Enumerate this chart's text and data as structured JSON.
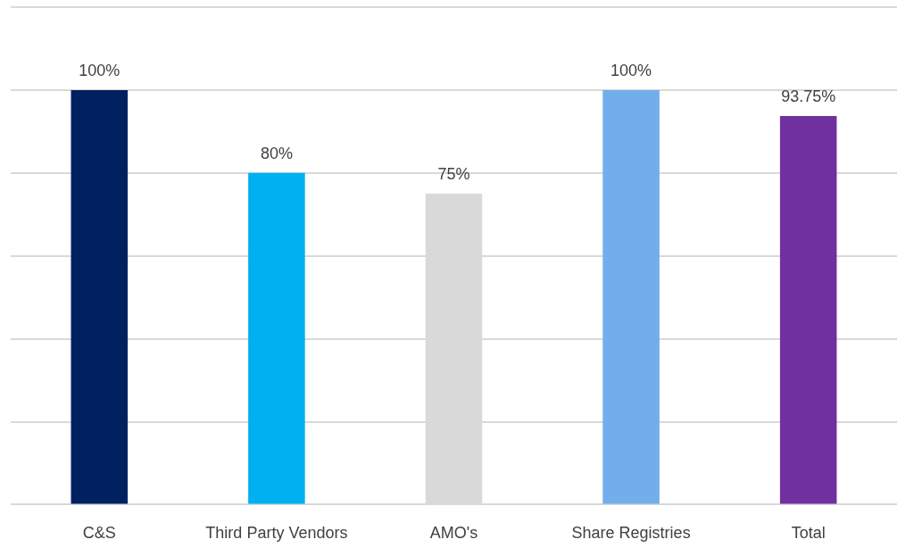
{
  "chart_data": {
    "type": "bar",
    "categories": [
      "C&S",
      "Third Party Vendors",
      "AMO's",
      "Share Registries",
      "Total"
    ],
    "values": [
      100,
      80,
      75,
      100,
      93.75
    ],
    "colors": [
      "#002060",
      "#00b0f0",
      "#d9d9d9",
      "#71aeeb",
      "#7030a0"
    ],
    "value_labels": [
      "100%",
      "80%",
      "75%",
      "100%",
      "93.75%"
    ],
    "ylim": [
      0,
      120
    ],
    "yticks": [
      0,
      20,
      40,
      60,
      80,
      100,
      120
    ],
    "grid": "y",
    "tick_labels": "x",
    "legend": false
  }
}
